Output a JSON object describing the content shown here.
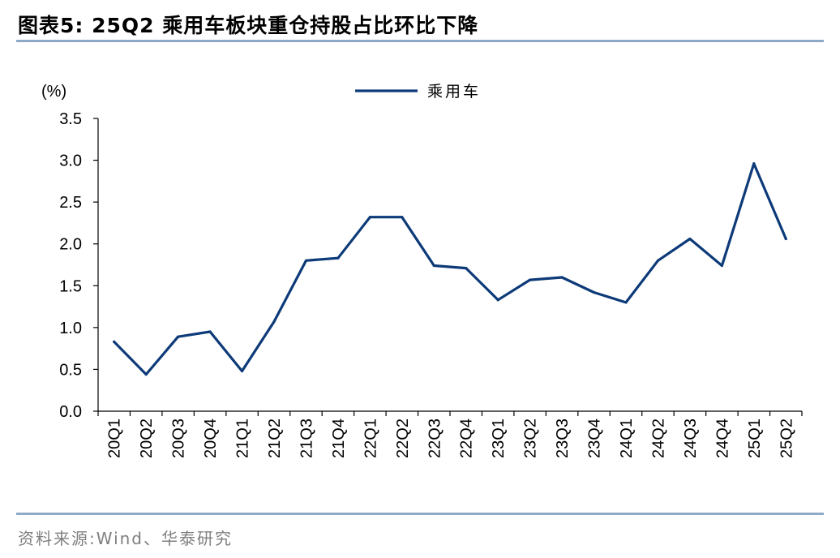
{
  "figure": {
    "title": "图表5:  25Q2 乘用车板块重仓持股占比环比下降",
    "source": "资料来源:Wind、华泰研究",
    "accent_color": "#8ea9c8"
  },
  "chart_data": {
    "type": "line",
    "unit_label": "(%)",
    "categories": [
      "20Q1",
      "20Q2",
      "20Q3",
      "20Q4",
      "21Q1",
      "21Q2",
      "21Q3",
      "21Q4",
      "22Q1",
      "22Q2",
      "22Q3",
      "22Q4",
      "23Q1",
      "23Q2",
      "23Q3",
      "23Q4",
      "24Q1",
      "24Q2",
      "24Q3",
      "24Q4",
      "25Q1",
      "25Q2"
    ],
    "series": [
      {
        "name": "乘用车",
        "color": "#0d3a78",
        "values": [
          0.83,
          0.44,
          0.89,
          0.95,
          0.48,
          1.07,
          1.8,
          1.83,
          2.32,
          2.32,
          1.74,
          1.71,
          1.33,
          1.57,
          1.6,
          1.42,
          1.3,
          1.8,
          2.06,
          1.74,
          2.96,
          2.06
        ]
      }
    ],
    "ylim": [
      0,
      3.5
    ],
    "yticks": [
      0.0,
      0.5,
      1.0,
      1.5,
      2.0,
      2.5,
      3.0,
      3.5
    ],
    "xlabel": "",
    "ylabel": "",
    "grid": false,
    "legend_position": "top-center"
  }
}
